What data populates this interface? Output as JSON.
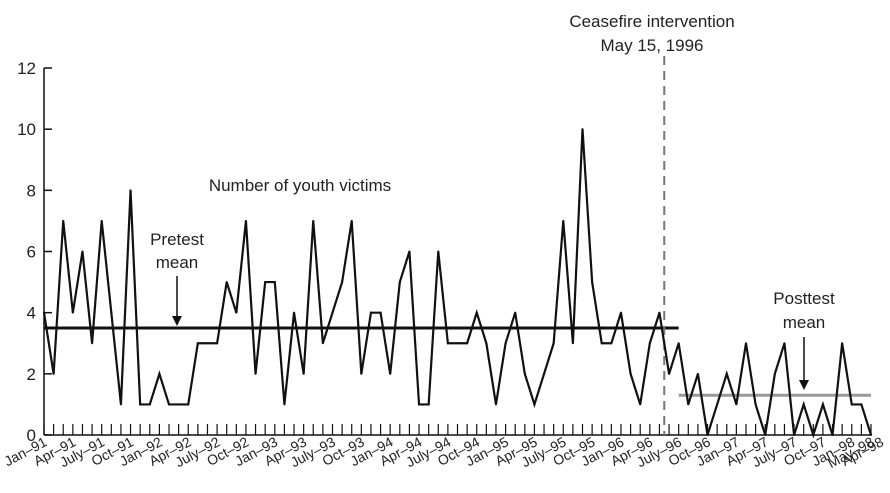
{
  "chart_data": {
    "type": "line",
    "title": "",
    "xlabel": "",
    "ylabel": "",
    "ylim": [
      0,
      12
    ],
    "yticks": [
      0,
      2,
      4,
      6,
      8,
      10,
      12
    ],
    "grid": false,
    "xtick_labels": [
      "Jan–91",
      "Apr–91",
      "July–91",
      "Oct–91",
      "Jan–92",
      "Apr–92",
      "July–92",
      "Oct–92",
      "Jan–93",
      "Apr–93",
      "July–93",
      "Oct–93",
      "Jan–94",
      "Apr–94",
      "July–94",
      "Oct–94",
      "Jan–95",
      "Apr–95",
      "July–95",
      "Oct–95",
      "Jan–96",
      "Apr–96",
      "July–96",
      "Oct–96",
      "Jan–97",
      "Apr–97",
      "July–97",
      "Oct–97",
      "Jan–98",
      "Apr–98",
      "May–98"
    ],
    "series": [
      {
        "values": [
          4,
          2,
          7,
          4,
          6,
          3,
          7,
          4,
          1,
          8,
          1,
          1,
          2,
          1,
          1,
          1,
          3,
          3,
          3,
          5,
          4,
          7,
          2,
          5,
          5,
          1,
          4,
          2,
          7,
          3,
          4,
          5,
          7,
          2,
          4,
          4,
          2,
          5,
          6,
          1,
          1,
          6,
          3,
          3,
          3,
          4,
          3,
          1,
          3,
          4,
          2,
          1,
          2,
          3,
          7,
          3,
          10,
          5,
          3,
          3,
          4,
          2,
          1,
          3,
          4,
          2,
          3,
          1,
          2,
          0,
          1,
          2,
          1,
          3,
          1,
          0,
          2,
          3,
          0,
          1,
          0,
          1,
          0,
          3,
          1,
          1,
          0
        ],
        "color": "#111111"
      }
    ],
    "reference_lines": [
      {
        "label": "Pretest mean",
        "value": 3.5,
        "from": "Jan–91",
        "to": "July–96",
        "color": "#111111"
      },
      {
        "label": "Posttest mean",
        "value": 1.3,
        "from": "July–96",
        "to": "May–98",
        "color": "#999999"
      }
    ],
    "annotations": {
      "series_label": "Number of youth victims",
      "intervention_line1": "Ceasefire intervention",
      "intervention_line2": "May 15, 1996",
      "pretest_line1": "Pretest",
      "pretest_line2": "mean",
      "posttest_line1": "Posttest",
      "posttest_line2": "mean"
    }
  }
}
